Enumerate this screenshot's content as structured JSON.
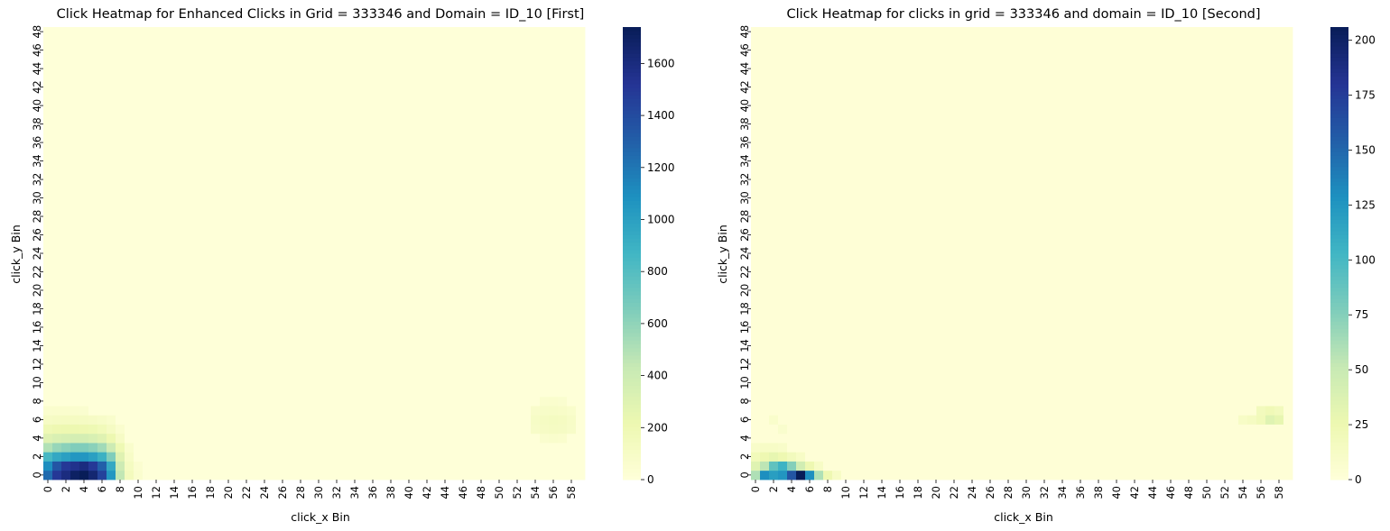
{
  "chart_data": [
    {
      "type": "heatmap",
      "title": "Click Heatmap for Enhanced Clicks in Grid = 333346 and Domain = ID_10 [First]",
      "xlabel": "click_x Bin",
      "ylabel": "click_y Bin",
      "x_bins": 60,
      "y_bins": 49,
      "x_tick_labels": [
        "0",
        "2",
        "4",
        "6",
        "8",
        "10",
        "12",
        "14",
        "16",
        "18",
        "20",
        "22",
        "24",
        "26",
        "28",
        "30",
        "32",
        "34",
        "36",
        "38",
        "40",
        "42",
        "44",
        "46",
        "48",
        "50",
        "52",
        "54",
        "56",
        "58"
      ],
      "y_tick_labels": [
        "0",
        "2",
        "4",
        "6",
        "8",
        "10",
        "12",
        "14",
        "16",
        "18",
        "20",
        "22",
        "24",
        "26",
        "28",
        "30",
        "32",
        "34",
        "36",
        "38",
        "40",
        "42",
        "44",
        "46",
        "48"
      ],
      "colorbar": {
        "min": 0,
        "max": 1740,
        "ticks": [
          0,
          200,
          400,
          600,
          800,
          1000,
          1200,
          1400,
          1600
        ],
        "colormap": "YlGnBu"
      },
      "background_level": 8,
      "hotspots": [
        {
          "x": 0,
          "y": 0,
          "value": 1250
        },
        {
          "x": 1,
          "y": 0,
          "value": 1500
        },
        {
          "x": 2,
          "y": 0,
          "value": 1600
        },
        {
          "x": 3,
          "y": 0,
          "value": 1700
        },
        {
          "x": 4,
          "y": 0,
          "value": 1740
        },
        {
          "x": 5,
          "y": 0,
          "value": 1650
        },
        {
          "x": 6,
          "y": 0,
          "value": 1450
        },
        {
          "x": 7,
          "y": 0,
          "value": 1050
        },
        {
          "x": 8,
          "y": 0,
          "value": 450
        },
        {
          "x": 9,
          "y": 0,
          "value": 150
        },
        {
          "x": 10,
          "y": 0,
          "value": 60
        },
        {
          "x": 0,
          "y": 1,
          "value": 1100
        },
        {
          "x": 1,
          "y": 1,
          "value": 1350
        },
        {
          "x": 2,
          "y": 1,
          "value": 1500
        },
        {
          "x": 3,
          "y": 1,
          "value": 1550
        },
        {
          "x": 4,
          "y": 1,
          "value": 1600
        },
        {
          "x": 5,
          "y": 1,
          "value": 1500
        },
        {
          "x": 6,
          "y": 1,
          "value": 1300
        },
        {
          "x": 7,
          "y": 1,
          "value": 950
        },
        {
          "x": 8,
          "y": 1,
          "value": 400
        },
        {
          "x": 9,
          "y": 1,
          "value": 130
        },
        {
          "x": 10,
          "y": 1,
          "value": 50
        },
        {
          "x": 0,
          "y": 2,
          "value": 850
        },
        {
          "x": 1,
          "y": 2,
          "value": 950
        },
        {
          "x": 2,
          "y": 2,
          "value": 1000
        },
        {
          "x": 3,
          "y": 2,
          "value": 1050
        },
        {
          "x": 4,
          "y": 2,
          "value": 1050
        },
        {
          "x": 5,
          "y": 2,
          "value": 1000
        },
        {
          "x": 6,
          "y": 2,
          "value": 900
        },
        {
          "x": 7,
          "y": 2,
          "value": 650
        },
        {
          "x": 8,
          "y": 2,
          "value": 300
        },
        {
          "x": 9,
          "y": 2,
          "value": 100
        },
        {
          "x": 0,
          "y": 3,
          "value": 500
        },
        {
          "x": 1,
          "y": 3,
          "value": 580
        },
        {
          "x": 2,
          "y": 3,
          "value": 620
        },
        {
          "x": 3,
          "y": 3,
          "value": 650
        },
        {
          "x": 4,
          "y": 3,
          "value": 650
        },
        {
          "x": 5,
          "y": 3,
          "value": 620
        },
        {
          "x": 6,
          "y": 3,
          "value": 550
        },
        {
          "x": 7,
          "y": 3,
          "value": 400
        },
        {
          "x": 8,
          "y": 3,
          "value": 200
        },
        {
          "x": 9,
          "y": 3,
          "value": 70
        },
        {
          "x": 0,
          "y": 4,
          "value": 300
        },
        {
          "x": 1,
          "y": 4,
          "value": 330
        },
        {
          "x": 2,
          "y": 4,
          "value": 350
        },
        {
          "x": 3,
          "y": 4,
          "value": 360
        },
        {
          "x": 4,
          "y": 4,
          "value": 360
        },
        {
          "x": 5,
          "y": 4,
          "value": 340
        },
        {
          "x": 6,
          "y": 4,
          "value": 300
        },
        {
          "x": 7,
          "y": 4,
          "value": 220
        },
        {
          "x": 8,
          "y": 4,
          "value": 110
        },
        {
          "x": 0,
          "y": 5,
          "value": 190
        },
        {
          "x": 1,
          "y": 5,
          "value": 210
        },
        {
          "x": 2,
          "y": 5,
          "value": 220
        },
        {
          "x": 3,
          "y": 5,
          "value": 220
        },
        {
          "x": 4,
          "y": 5,
          "value": 210
        },
        {
          "x": 5,
          "y": 5,
          "value": 200
        },
        {
          "x": 6,
          "y": 5,
          "value": 170
        },
        {
          "x": 7,
          "y": 5,
          "value": 120
        },
        {
          "x": 8,
          "y": 5,
          "value": 60
        },
        {
          "x": 0,
          "y": 6,
          "value": 110
        },
        {
          "x": 1,
          "y": 6,
          "value": 120
        },
        {
          "x": 2,
          "y": 6,
          "value": 125
        },
        {
          "x": 3,
          "y": 6,
          "value": 125
        },
        {
          "x": 4,
          "y": 6,
          "value": 120
        },
        {
          "x": 5,
          "y": 6,
          "value": 110
        },
        {
          "x": 6,
          "y": 6,
          "value": 95
        },
        {
          "x": 7,
          "y": 6,
          "value": 70
        },
        {
          "x": 0,
          "y": 7,
          "value": 60
        },
        {
          "x": 1,
          "y": 7,
          "value": 65
        },
        {
          "x": 2,
          "y": 7,
          "value": 65
        },
        {
          "x": 3,
          "y": 7,
          "value": 60
        },
        {
          "x": 4,
          "y": 7,
          "value": 55
        },
        {
          "x": 54,
          "y": 5,
          "value": 95
        },
        {
          "x": 55,
          "y": 5,
          "value": 110
        },
        {
          "x": 56,
          "y": 5,
          "value": 120
        },
        {
          "x": 57,
          "y": 5,
          "value": 115
        },
        {
          "x": 58,
          "y": 5,
          "value": 95
        },
        {
          "x": 54,
          "y": 6,
          "value": 105
        },
        {
          "x": 55,
          "y": 6,
          "value": 120
        },
        {
          "x": 56,
          "y": 6,
          "value": 130
        },
        {
          "x": 57,
          "y": 6,
          "value": 125
        },
        {
          "x": 58,
          "y": 6,
          "value": 100
        },
        {
          "x": 54,
          "y": 7,
          "value": 80
        },
        {
          "x": 55,
          "y": 7,
          "value": 95
        },
        {
          "x": 56,
          "y": 7,
          "value": 100
        },
        {
          "x": 57,
          "y": 7,
          "value": 90
        },
        {
          "x": 58,
          "y": 7,
          "value": 75
        },
        {
          "x": 55,
          "y": 8,
          "value": 60
        },
        {
          "x": 56,
          "y": 8,
          "value": 65
        },
        {
          "x": 57,
          "y": 8,
          "value": 55
        },
        {
          "x": 55,
          "y": 4,
          "value": 60
        },
        {
          "x": 56,
          "y": 4,
          "value": 70
        },
        {
          "x": 57,
          "y": 4,
          "value": 65
        }
      ]
    },
    {
      "type": "heatmap",
      "title": "Click Heatmap for clicks in grid = 333346 and domain = ID_10 [Second]",
      "xlabel": "click_x Bin",
      "ylabel": "click_y Bin",
      "x_bins": 60,
      "y_bins": 49,
      "x_tick_labels": [
        "0",
        "2",
        "4",
        "6",
        "8",
        "10",
        "12",
        "14",
        "16",
        "18",
        "20",
        "22",
        "24",
        "26",
        "28",
        "30",
        "32",
        "34",
        "36",
        "38",
        "40",
        "42",
        "44",
        "46",
        "48",
        "50",
        "52",
        "54",
        "56",
        "58"
      ],
      "y_tick_labels": [
        "0",
        "2",
        "4",
        "6",
        "8",
        "10",
        "12",
        "14",
        "16",
        "18",
        "20",
        "22",
        "24",
        "26",
        "28",
        "30",
        "32",
        "34",
        "36",
        "38",
        "40",
        "42",
        "44",
        "46",
        "48"
      ],
      "colorbar": {
        "min": 0,
        "max": 206,
        "ticks": [
          0,
          25,
          50,
          75,
          100,
          125,
          150,
          175,
          200
        ],
        "colormap": "YlGnBu"
      },
      "background_level": 2,
      "hotspots": [
        {
          "x": 0,
          "y": 0,
          "value": 60
        },
        {
          "x": 1,
          "y": 0,
          "value": 130
        },
        {
          "x": 2,
          "y": 0,
          "value": 120
        },
        {
          "x": 3,
          "y": 0,
          "value": 125
        },
        {
          "x": 4,
          "y": 0,
          "value": 160
        },
        {
          "x": 5,
          "y": 0,
          "value": 206
        },
        {
          "x": 6,
          "y": 0,
          "value": 130
        },
        {
          "x": 7,
          "y": 0,
          "value": 60
        },
        {
          "x": 8,
          "y": 0,
          "value": 25
        },
        {
          "x": 9,
          "y": 0,
          "value": 12
        },
        {
          "x": 0,
          "y": 1,
          "value": 35
        },
        {
          "x": 1,
          "y": 1,
          "value": 55
        },
        {
          "x": 2,
          "y": 1,
          "value": 90
        },
        {
          "x": 3,
          "y": 1,
          "value": 105
        },
        {
          "x": 4,
          "y": 1,
          "value": 75
        },
        {
          "x": 5,
          "y": 1,
          "value": 45
        },
        {
          "x": 6,
          "y": 1,
          "value": 25
        },
        {
          "x": 7,
          "y": 1,
          "value": 12
        },
        {
          "x": 0,
          "y": 2,
          "value": 20
        },
        {
          "x": 1,
          "y": 2,
          "value": 25
        },
        {
          "x": 2,
          "y": 2,
          "value": 30
        },
        {
          "x": 3,
          "y": 2,
          "value": 25
        },
        {
          "x": 4,
          "y": 2,
          "value": 18
        },
        {
          "x": 5,
          "y": 2,
          "value": 12
        },
        {
          "x": 0,
          "y": 3,
          "value": 10
        },
        {
          "x": 1,
          "y": 3,
          "value": 12
        },
        {
          "x": 2,
          "y": 3,
          "value": 12
        },
        {
          "x": 3,
          "y": 3,
          "value": 10
        },
        {
          "x": 2,
          "y": 6,
          "value": 9
        },
        {
          "x": 3,
          "y": 5,
          "value": 8
        },
        {
          "x": 54,
          "y": 6,
          "value": 12
        },
        {
          "x": 55,
          "y": 6,
          "value": 15
        },
        {
          "x": 56,
          "y": 6,
          "value": 20
        },
        {
          "x": 57,
          "y": 6,
          "value": 35
        },
        {
          "x": 58,
          "y": 6,
          "value": 30
        },
        {
          "x": 56,
          "y": 7,
          "value": 18
        },
        {
          "x": 57,
          "y": 7,
          "value": 22
        },
        {
          "x": 58,
          "y": 7,
          "value": 18
        }
      ]
    }
  ]
}
